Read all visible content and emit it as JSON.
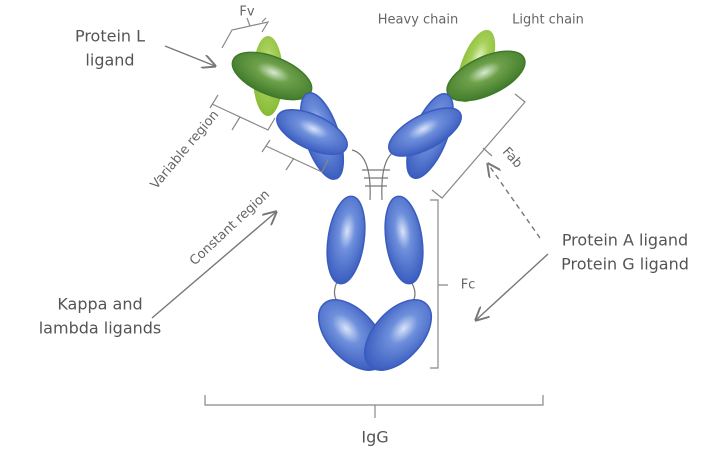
{
  "labels": {
    "fv": "Fv",
    "heavy_chain": "Heavy chain",
    "light_chain": "Light chain",
    "protein_l": [
      "Protein L",
      "ligand"
    ],
    "variable_region": "Variable region",
    "constant_region": "Constant region",
    "fab": "Fab",
    "protein_a_g": [
      "Protein A ligand",
      "Protein G ligand"
    ],
    "kappa_lambda": [
      "Kappa and",
      "lambda ligands"
    ],
    "fc": "Fc",
    "igg": "IgG"
  }
}
